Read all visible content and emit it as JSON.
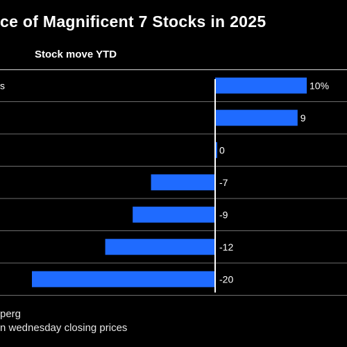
{
  "title": "ce of Magnificent 7 Stocks in 2025",
  "subtitle": "Stock move YTD",
  "footer": {
    "source": "perg",
    "note": "n wednesday closing prices"
  },
  "colors": {
    "background": "#000000",
    "bar": "#1f6bff",
    "zero_line": "#ffffff",
    "row_rule": "#6e6e6e",
    "text": "#ffffff"
  },
  "chart_data": {
    "type": "bar",
    "orientation": "horizontal",
    "categories": [
      "s",
      "",
      "",
      "",
      "",
      "",
      ""
    ],
    "values": [
      10,
      9,
      0,
      -7,
      -9,
      -12,
      -20
    ],
    "value_labels": [
      "10%",
      "9",
      "0",
      "-7",
      "-9",
      "-12",
      "-20"
    ],
    "title": "ce of Magnificent 7 Stocks in 2025",
    "subtitle": "Stock move YTD",
    "xlim": [
      -21,
      10
    ],
    "grid": false,
    "legend": "none"
  }
}
